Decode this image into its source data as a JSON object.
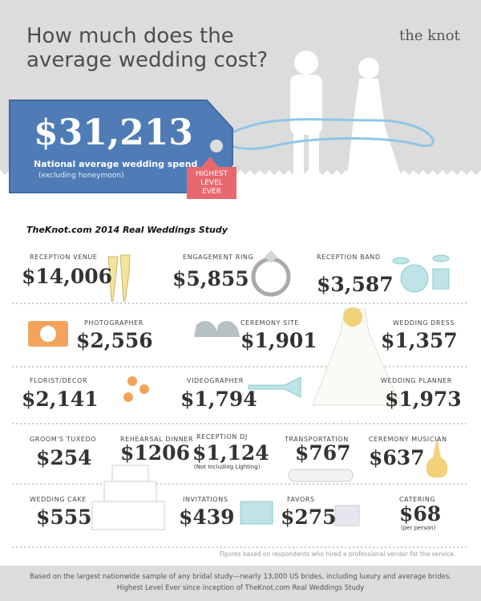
{
  "header": {
    "title": [
      "How much does the",
      "average wedding cost?"
    ],
    "logo": "the knot"
  },
  "tag": {
    "amount": "$31,213",
    "caption": "National average wedding spend",
    "note": "(excluding honeymoon)"
  },
  "badge": [
    "HIGHEST",
    "LEVEL",
    "EVER"
  ],
  "study_title": "TheKnot.com 2014 Real Weddings Study",
  "items": [
    {
      "label": "Reception Venue",
      "amount": "$14,006"
    },
    {
      "label": "Engagement Ring",
      "amount": "$5,855"
    },
    {
      "label": "Reception Band",
      "amount": "$3,587"
    },
    {
      "label": "Photographer",
      "amount": "$2,556"
    },
    {
      "label": "Ceremony Site",
      "amount": "$1,901"
    },
    {
      "label": "Wedding Dress",
      "amount": "$1,357"
    },
    {
      "label": "Florist/Décor",
      "amount": "$2,141"
    },
    {
      "label": "Videographer",
      "amount": "$1,794"
    },
    {
      "label": "Wedding Planner",
      "amount": "$1,973"
    },
    {
      "label": "Groom's Tuxedo",
      "amount": "$254"
    },
    {
      "label": "Rehearsal Dinner",
      "amount": "$1206"
    },
    {
      "label": "Reception DJ",
      "amount": "$1,124",
      "note": "(Not Including Lighting)"
    },
    {
      "label": "Transportation",
      "amount": "$767"
    },
    {
      "label": "Ceremony Musician",
      "amount": "$637"
    },
    {
      "label": "Wedding Cake",
      "amount": "$555"
    },
    {
      "label": "Invitations",
      "amount": "$439"
    },
    {
      "label": "Favors",
      "amount": "$275"
    },
    {
      "label": "Catering",
      "amount": "$68",
      "note": "(per person)"
    }
  ],
  "footnote": "Figures based on respondents who hired a professional vendor for the service.",
  "footer": [
    "Based on the largest nationwide sample of any bridal study—nearly 13,000 US brides, including luxury and average brides.",
    "Highest Level Ever since inception of TheKnot.com Real Weddings Study"
  ]
}
